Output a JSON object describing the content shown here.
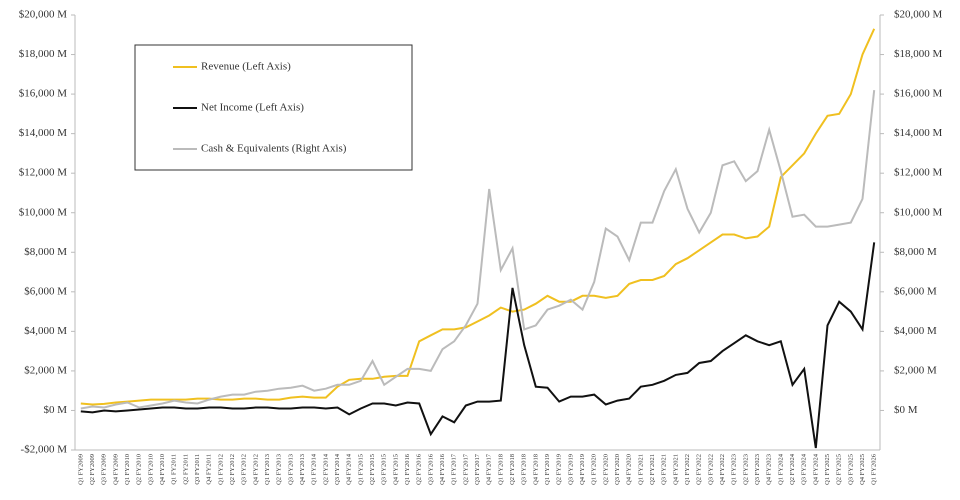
{
  "chart_data": {
    "type": "line",
    "categories": [
      "Q1 FY2009",
      "Q2 FY2009",
      "Q3 FY2009",
      "Q4 FY2009",
      "Q1 FY2010",
      "Q2 FY2010",
      "Q3 FY2010",
      "Q4 FY2010",
      "Q1 FY2011",
      "Q2 FY2011",
      "Q3 FY2011",
      "Q4 FY2011",
      "Q1 FY2012",
      "Q2 FY2012",
      "Q3 FY2012",
      "Q4 FY2012",
      "Q1 FY2013",
      "Q2 FY2013",
      "Q3 FY2013",
      "Q4 FY2013",
      "Q1 FY2014",
      "Q2 FY2014",
      "Q3 FY2014",
      "Q4 FY2014",
      "Q1 FY2015",
      "Q2 FY2015",
      "Q3 FY2015",
      "Q4 FY2015",
      "Q1 FY2016",
      "Q2 FY2016",
      "Q3 FY2016",
      "Q4 FY2016",
      "Q1 FY2017",
      "Q2 FY2017",
      "Q3 FY2017",
      "Q4 FY2017",
      "Q1 FY2018",
      "Q2 FY2018",
      "Q3 FY2018",
      "Q4 FY2018",
      "Q1 FY2019",
      "Q2 FY2019",
      "Q3 FY2019",
      "Q4 FY2019",
      "Q1 FY2020",
      "Q2 FY2020",
      "Q3 FY2020",
      "Q4 FY2020",
      "Q1 FY2021",
      "Q2 FY2021",
      "Q3 FY2021",
      "Q4 FY2021",
      "Q1 FY2022",
      "Q2 FY2022",
      "Q3 FY2022",
      "Q4 FY2022",
      "Q1 FY2023",
      "Q2 FY2023",
      "Q3 FY2023",
      "Q4 FY2023",
      "Q1 FY2024",
      "Q2 FY2024",
      "Q3 FY2024",
      "Q4 FY2024",
      "Q1 FY2025",
      "Q2 FY2025",
      "Q3 FY2025",
      "Q4 FY2025",
      "Q1 FY2026"
    ],
    "series": [
      {
        "name": "Revenue (Left Axis)",
        "color": "#f0c020",
        "values": [
          350,
          300,
          330,
          400,
          450,
          500,
          550,
          550,
          550,
          550,
          600,
          600,
          550,
          550,
          600,
          600,
          550,
          550,
          650,
          700,
          650,
          650,
          1200,
          1550,
          1600,
          1600,
          1700,
          1750,
          1750,
          3500,
          3800,
          4100,
          4100,
          4200,
          4500,
          4800,
          5200,
          5000,
          5100,
          5400,
          5800,
          5500,
          5500,
          5800,
          5800,
          5700,
          5800,
          6400,
          6600,
          6600,
          6800,
          7400,
          7700,
          8100,
          8500,
          8900,
          8900,
          8700,
          8800,
          9300,
          11800,
          12400,
          13000,
          14000,
          14900,
          15000,
          16000,
          18000,
          19300
        ]
      },
      {
        "name": "Net Income (Left Axis)",
        "color": "#111111",
        "values": [
          -50,
          -100,
          0,
          -50,
          0,
          50,
          100,
          150,
          150,
          100,
          100,
          150,
          150,
          100,
          100,
          150,
          150,
          100,
          100,
          150,
          150,
          100,
          150,
          -200,
          100,
          350,
          350,
          250,
          400,
          350,
          -1200,
          -300,
          -600,
          250,
          450,
          450,
          500,
          6200,
          3300,
          1200,
          1150,
          450,
          700,
          700,
          800,
          300,
          500,
          600,
          1200,
          1300,
          1500,
          1800,
          1900,
          2400,
          2500,
          3000,
          3400,
          3800,
          3500,
          3300,
          3500,
          1300,
          2100,
          -1900,
          4300,
          5500,
          5000,
          4100,
          8500
        ]
      },
      {
        "name": "Cash & Equivalents (Right Axis)",
        "color": "#bbbbbb",
        "axis": "y2",
        "values": [
          100,
          200,
          150,
          300,
          400,
          150,
          250,
          350,
          500,
          400,
          350,
          550,
          700,
          800,
          800,
          950,
          1000,
          1100,
          1150,
          1250,
          1000,
          1100,
          1300,
          1300,
          1500,
          2500,
          1300,
          1700,
          2100,
          2100,
          2000,
          3100,
          3500,
          4300,
          5400,
          11200,
          7100,
          8200,
          4100,
          4300,
          5100,
          5300,
          5600,
          5100,
          6500,
          9200,
          8800,
          7600,
          9500,
          9500,
          11100,
          12200,
          10200,
          9000,
          10000,
          12400,
          12600,
          11600,
          12100,
          14200,
          12100,
          9800,
          9900,
          9300,
          9300,
          9400,
          9500,
          10700,
          16200
        ]
      }
    ],
    "ylim": [
      -2000,
      20000
    ],
    "yticks": [
      {
        "value": -2000,
        "label": "-$2,000 M"
      },
      {
        "value": 0,
        "label": "$0 M"
      },
      {
        "value": 2000,
        "label": "$2,000 M"
      },
      {
        "value": 4000,
        "label": "$4,000 M"
      },
      {
        "value": 6000,
        "label": "$6,000 M"
      },
      {
        "value": 8000,
        "label": "$8,000 M"
      },
      {
        "value": 10000,
        "label": "$10,000 M"
      },
      {
        "value": 12000,
        "label": "$12,000 M"
      },
      {
        "value": 14000,
        "label": "$14,000 M"
      },
      {
        "value": 16000,
        "label": "$16,000 M"
      },
      {
        "value": 18000,
        "label": "$18,000 M"
      },
      {
        "value": 20000,
        "label": "$20,000 M"
      }
    ],
    "y2lim": [
      -2000,
      20000
    ],
    "y2ticks": [
      {
        "value": 0,
        "label": "$0 M"
      },
      {
        "value": 2000,
        "label": "$2,000 M"
      },
      {
        "value": 4000,
        "label": "$4,000 M"
      },
      {
        "value": 6000,
        "label": "$6,000 M"
      },
      {
        "value": 8000,
        "label": "$8,000 M"
      },
      {
        "value": 10000,
        "label": "$10,000 M"
      },
      {
        "value": 12000,
        "label": "$12,000 M"
      },
      {
        "value": 14000,
        "label": "$14,000 M"
      },
      {
        "value": 16000,
        "label": "$16,000 M"
      },
      {
        "value": 18000,
        "label": "$18,000 M"
      },
      {
        "value": 20000,
        "label": "$20,000 M"
      }
    ],
    "grid": false,
    "legend": "upper-left"
  }
}
